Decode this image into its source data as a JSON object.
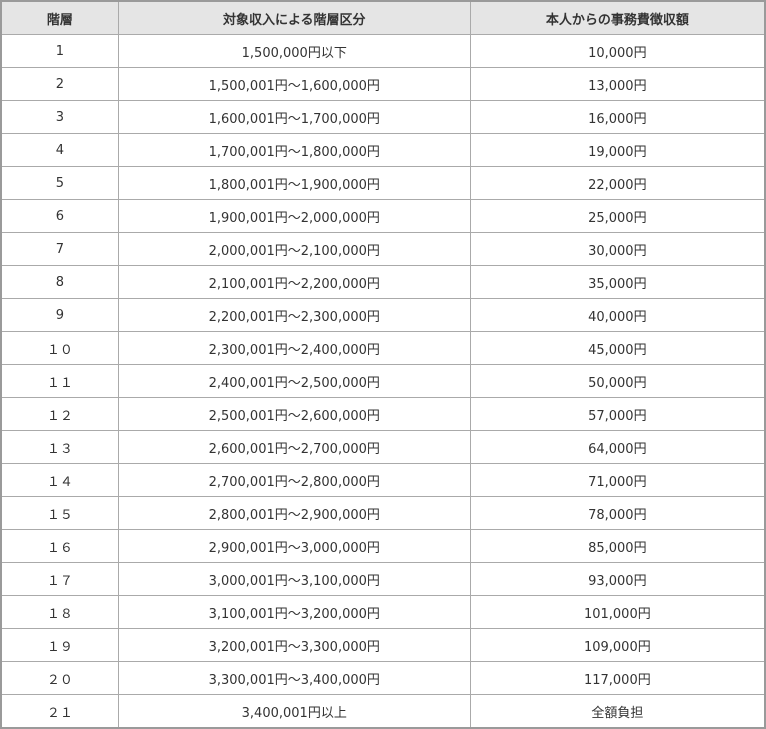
{
  "headers": [
    "階層",
    "対象収入による階層区分",
    "本人からの事務費徴収額"
  ],
  "rows": [
    [
      "1",
      "1,500,000円以下",
      "10,000円"
    ],
    [
      "2",
      "1,500,001円～1,600,000円",
      "13,000円"
    ],
    [
      "3",
      "1,600,001円～1,700,000円",
      "16,000円"
    ],
    [
      "4",
      "1,700,001円～1,800,000円",
      "19,000円"
    ],
    [
      "5",
      "1,800,001円～1,900,000円",
      "22,000円"
    ],
    [
      "6",
      "1,900,001円～2,000,000円",
      "25,000円"
    ],
    [
      "7",
      "2,000,001円～2,100,000円",
      "30,000円"
    ],
    [
      "8",
      "2,100,001円～2,200,000円",
      "35,000円"
    ],
    [
      "9",
      "2,200,001円～2,300,000円",
      "40,000円"
    ],
    [
      "１０",
      "2,300,001円～2,400,000円",
      "45,000円"
    ],
    [
      "１１",
      "2,400,001円～2,500,000円",
      "50,000円"
    ],
    [
      "１２",
      "2,500,001円～2,600,000円",
      "57,000円"
    ],
    [
      "１３",
      "2,600,001円～2,700,000円",
      "64,000円"
    ],
    [
      "１４",
      "2,700,001円～2,800,000円",
      "71,000円"
    ],
    [
      "１５",
      "2,800,001円～2,900,000円",
      "78,000円"
    ],
    [
      "１６",
      "2,900,001円～3,000,000円",
      "85,000円"
    ],
    [
      "１７",
      "3,000,001円～3,100,000円",
      "93,000円"
    ],
    [
      "１８",
      "3,100,001円～3,200,000円",
      "101,000円"
    ],
    [
      "１９",
      "3,200,001円～3,300,000円",
      "109,000円"
    ],
    [
      "２０",
      "3,300,001円～3,400,000円",
      "117,000円"
    ],
    [
      "２１",
      "3,400,001円以上",
      "全額負担"
    ]
  ]
}
